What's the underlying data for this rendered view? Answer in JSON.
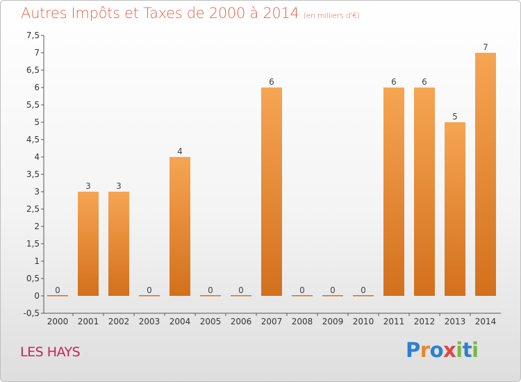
{
  "page": {
    "title": "Autres Impôts et Taxes de 2000 à 2014",
    "title_unit": "(en milliers d'€)",
    "city": "LES HAYS",
    "logo_letters": [
      {
        "ch": "P",
        "color": "#2f7fd0"
      },
      {
        "ch": "r",
        "color": "#e8892b"
      },
      {
        "ch": "o",
        "color": "#2f7fd0"
      },
      {
        "ch": "x",
        "color": "#e04646"
      },
      {
        "ch": "i",
        "color": "#7ab648"
      },
      {
        "ch": "t",
        "color": "#2f7fd0"
      },
      {
        "ch": "i",
        "color": "#7ab648"
      }
    ]
  },
  "chart_data": {
    "type": "bar",
    "title": "Autres Impôts et Taxes de 2000 à 2014",
    "ylabel": "(en milliers d'€)",
    "xlabel": "",
    "categories": [
      "2000",
      "2001",
      "2002",
      "2003",
      "2004",
      "2005",
      "2006",
      "2007",
      "2008",
      "2009",
      "2010",
      "2011",
      "2012",
      "2013",
      "2014"
    ],
    "values": [
      0,
      3,
      3,
      0,
      4,
      0,
      0,
      6,
      0,
      0,
      0,
      6,
      6,
      5,
      7
    ],
    "value_labels": [
      "0",
      "3",
      "3",
      "0",
      "4",
      "0",
      "0",
      "6",
      "0",
      "0",
      "0",
      "6",
      "6",
      "5",
      "7"
    ],
    "ylim": [
      -0.5,
      7.5
    ],
    "yticks": [
      -0.5,
      0,
      0.5,
      1,
      1.5,
      2,
      2.5,
      3,
      3.5,
      4,
      4.5,
      5,
      5.5,
      6,
      6.5,
      7,
      7.5
    ],
    "ytick_labels": [
      "-0,5",
      "0",
      "0,5",
      "1",
      "1,5",
      "2",
      "2,5",
      "3",
      "3,5",
      "4",
      "4,5",
      "5",
      "5,5",
      "6",
      "6,5",
      "7",
      "7,5"
    ],
    "grid": false,
    "bar_color_top": "#f6a553",
    "bar_color_bottom": "#d3701c"
  }
}
